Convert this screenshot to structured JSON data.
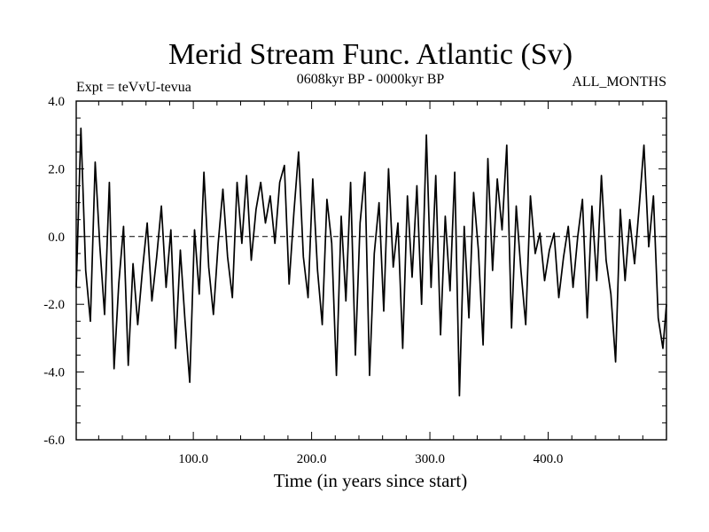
{
  "chart_data": {
    "type": "line",
    "title": "Merid Stream Func. Atlantic (Sv)",
    "subtitle_left": "Expt = teVvU-tevua",
    "subtitle_center": "0608kyr BP - 0000kyr BP",
    "subtitle_right": "ALL_MONTHS",
    "xlabel": "Time (in years since start)",
    "ylabel": "",
    "xlim": [
      1,
      500
    ],
    "ylim": [
      -6,
      4
    ],
    "x_ticks": [
      100,
      200,
      300,
      400
    ],
    "x_tick_labels": [
      "100.0",
      "200.0",
      "300.0",
      "400.0"
    ],
    "y_ticks": [
      -6,
      -4,
      -2,
      0,
      2,
      4
    ],
    "y_tick_labels": [
      "-6.0",
      "-4.0",
      "-2.0",
      "0.0",
      "2.0",
      "4.0"
    ],
    "reference_line": 0,
    "grid": false,
    "line_color": "#000000",
    "series": [
      {
        "x": [
          1,
          5,
          9,
          13,
          17,
          21,
          25,
          29,
          33,
          37,
          41,
          45,
          49,
          53,
          57,
          61,
          65,
          69,
          73,
          77,
          81,
          85,
          89,
          93,
          97,
          101,
          105,
          109,
          113,
          117,
          121,
          125,
          129,
          133,
          137,
          141,
          145,
          149,
          153,
          157,
          161,
          165,
          169,
          173,
          177,
          181,
          185,
          189,
          193,
          197,
          201,
          205,
          209,
          213,
          217,
          221,
          225,
          229,
          233,
          237,
          241,
          245,
          249,
          253,
          257,
          261,
          265,
          269,
          273,
          277,
          281,
          285,
          289,
          293,
          297,
          301,
          305,
          309,
          313,
          317,
          321,
          325,
          329,
          333,
          337,
          341,
          345,
          349,
          353,
          357,
          361,
          365,
          369,
          373,
          377,
          381,
          385,
          389,
          393,
          397,
          401,
          405,
          409,
          413,
          417,
          421,
          425,
          429,
          433,
          437,
          441,
          445,
          449,
          453,
          457,
          461,
          465,
          469,
          473,
          477,
          481,
          485,
          489,
          493,
          497,
          500
        ],
        "y": [
          -1.5,
          3.2,
          -1.0,
          -2.5,
          2.2,
          -0.3,
          -2.3,
          1.6,
          -3.9,
          -1.4,
          0.3,
          -3.8,
          -0.8,
          -2.6,
          -1.0,
          0.4,
          -1.9,
          -0.6,
          0.9,
          -1.5,
          0.2,
          -3.3,
          -0.4,
          -2.5,
          -4.3,
          0.2,
          -1.7,
          1.9,
          -0.9,
          -2.3,
          -0.2,
          1.4,
          -0.6,
          -1.8,
          1.6,
          -0.2,
          1.8,
          -0.7,
          0.8,
          1.6,
          0.4,
          1.2,
          -0.2,
          1.6,
          2.1,
          -1.4,
          0.7,
          2.5,
          -0.6,
          -1.8,
          1.7,
          -1.0,
          -2.6,
          1.1,
          -0.2,
          -4.1,
          0.6,
          -1.9,
          1.6,
          -3.5,
          0.4,
          1.9,
          -4.1,
          -0.5,
          1.0,
          -2.2,
          2.0,
          -0.9,
          0.4,
          -3.3,
          1.2,
          -1.2,
          1.5,
          -2.0,
          3.0,
          -1.5,
          1.8,
          -2.9,
          0.6,
          -1.6,
          1.9,
          -4.7,
          0.3,
          -2.4,
          1.3,
          -0.4,
          -3.2,
          2.3,
          -1.0,
          1.7,
          0.2,
          2.7,
          -2.7,
          0.9,
          -1.0,
          -2.6,
          1.2,
          -0.5,
          0.1,
          -1.3,
          -0.4,
          0.1,
          -1.8,
          -0.6,
          0.3,
          -1.5,
          0.0,
          1.1,
          -2.4,
          0.9,
          -1.3,
          1.8,
          -0.7,
          -1.7,
          -3.7,
          0.8,
          -1.3,
          0.5,
          -0.8,
          0.9,
          2.7,
          -0.3,
          1.2,
          -2.4,
          -3.3,
          -2.0
        ]
      }
    ]
  }
}
